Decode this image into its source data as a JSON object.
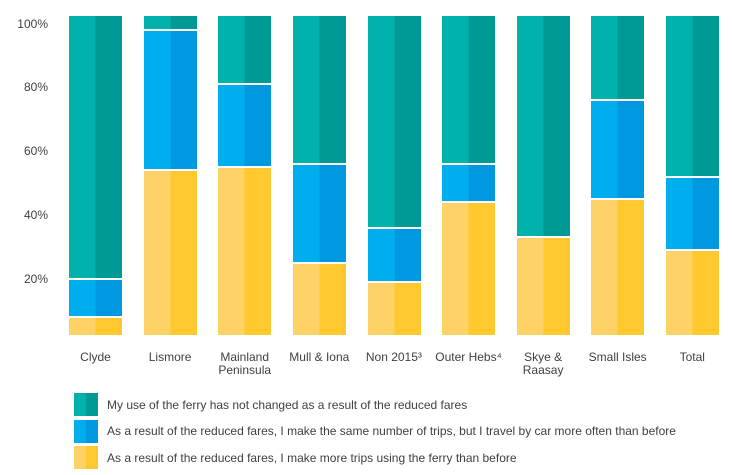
{
  "chart_data": {
    "type": "bar",
    "subtype": "100-percent-stacked-column",
    "title": "",
    "categories": [
      "Clyde",
      "Lismore",
      "Mainland Peninsula",
      "Mull & Iona",
      "Non 2015³",
      "Outer Hebs⁴",
      "Skye & Raasay",
      "Small Isles",
      "Total"
    ],
    "series": [
      {
        "name": "My use of the ferry has not changed as a result of the reduced fares",
        "color_light": "#00b1ac",
        "color_dark": "#009a96",
        "values": [
          82,
          4,
          21,
          46,
          66,
          46,
          69,
          26,
          50
        ]
      },
      {
        "name": "As a result of the reduced fares, I make the same number of trips, but I travel by car more often than before",
        "color_light": "#00aeef",
        "color_dark": "#0099e1",
        "values": [
          12,
          44,
          26,
          31,
          17,
          12,
          0,
          31,
          23
        ]
      },
      {
        "name": "As a result of the reduced fares, I make more trips using the ferry than before",
        "color_light": "#ffd267",
        "color_dark": "#fec82f",
        "values": [
          6,
          52,
          53,
          23,
          17,
          42,
          31,
          43,
          27
        ]
      }
    ],
    "y_axis": {
      "ticks": [
        "100%",
        "80%",
        "60%",
        "40%",
        "20%"
      ],
      "tick_values": [
        100,
        80,
        60,
        40,
        20
      ],
      "min": 0,
      "max": 100,
      "unit": "%"
    },
    "legend_position": "bottom-left",
    "grid": false,
    "text_color": "#3f3f3f",
    "background_color": "#ffffff"
  }
}
